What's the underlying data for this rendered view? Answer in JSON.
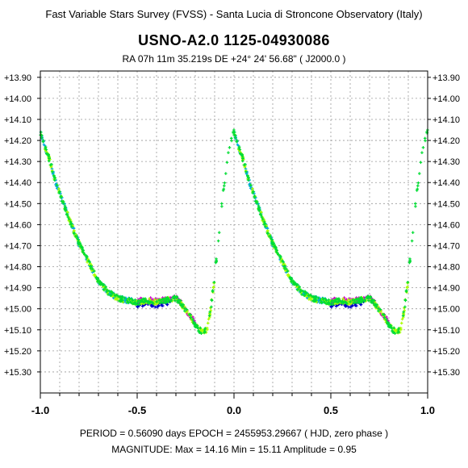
{
  "header": {
    "survey": "Fast Variable Stars Survey (FVSS) - Santa Lucia di Stroncone Observatory (Italy)",
    "star_name": "USNO-A2.0  1125-04930086",
    "coords": "RA  07h 11m 35.219s     DE  +24° 24' 56.68\"     ( J2000.0 )"
  },
  "footer": {
    "line1": "PERIOD = 0.56090 days     EPOCH = 2455953.29667  ( HJD, zero phase )",
    "line2": "MAGNITUDE:  Max = 14.16    Min = 15.11    Amplitude = 0.95"
  },
  "chart_data": {
    "type": "scatter",
    "title": "USNO-A2.0  1125-04930086",
    "xlabel": "",
    "ylabel": "",
    "xlim": [
      -1.0,
      1.0
    ],
    "ylim": [
      13.87,
      15.4
    ],
    "y_inverted": true,
    "grid": true,
    "x_ticks": [
      "-1.0",
      "-0.5",
      "0.0",
      "0.5",
      "1.0"
    ],
    "x_tick_values": [
      -1.0,
      -0.5,
      0.0,
      0.5,
      1.0
    ],
    "y_ticks": [
      "+13.90",
      "+14.00",
      "+14.10",
      "+14.20",
      "+14.30",
      "+14.40",
      "+14.50",
      "+14.60",
      "+14.70",
      "+14.80",
      "+14.90",
      "+15.00",
      "+15.10",
      "+15.20",
      "+15.30"
    ],
    "y_tick_values": [
      13.9,
      14.0,
      14.1,
      14.2,
      14.3,
      14.4,
      14.5,
      14.6,
      14.7,
      14.8,
      14.9,
      15.0,
      15.1,
      15.2,
      15.3
    ],
    "light_curve": {
      "phase": [
        0.0,
        0.02,
        0.05,
        0.08,
        0.12,
        0.16,
        0.2,
        0.25,
        0.3,
        0.35,
        0.4,
        0.45,
        0.5,
        0.55,
        0.6,
        0.65,
        0.7,
        0.73,
        0.76,
        0.79,
        0.82,
        0.84,
        0.86,
        0.88,
        0.9,
        0.92,
        0.94,
        0.96,
        0.98,
        1.0
      ],
      "magnitude": [
        14.16,
        14.22,
        14.3,
        14.4,
        14.5,
        14.6,
        14.69,
        14.78,
        14.87,
        14.92,
        14.95,
        14.96,
        14.97,
        14.96,
        14.97,
        14.96,
        14.95,
        14.98,
        15.02,
        15.06,
        15.1,
        15.11,
        15.1,
        15.0,
        14.85,
        14.66,
        14.48,
        14.33,
        14.21,
        14.16
      ]
    },
    "series": [
      {
        "color": "#0000cc",
        "phase_range": [
          0.5,
          0.68
        ]
      },
      {
        "color": "#cc00cc",
        "phase_range": [
          0.5,
          0.8
        ]
      },
      {
        "color": "#00a8e0",
        "phase_range": [
          0.0,
          0.5
        ]
      },
      {
        "color": "#aaff00",
        "phase_range": [
          0.0,
          0.9
        ]
      },
      {
        "color": "#00dd33",
        "phase_range": [
          0.0,
          1.0
        ]
      }
    ]
  }
}
